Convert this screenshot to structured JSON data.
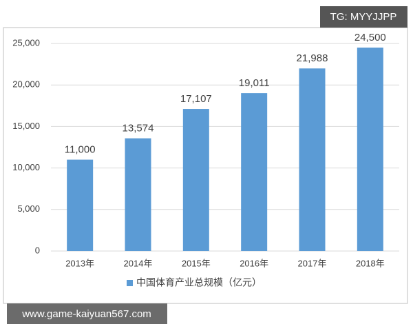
{
  "chart_data": {
    "type": "bar",
    "categories": [
      "2013年",
      "2014年",
      "2015年",
      "2016年",
      "2017年",
      "2018年"
    ],
    "series": [
      {
        "name": "中国体育产业总规模（亿元）",
        "color": "#5b9bd5",
        "values": [
          11000,
          13574,
          17107,
          19011,
          21988,
          24500
        ],
        "value_labels": [
          "11,000",
          "13,574",
          "17,107",
          "19,011",
          "21,988",
          "24,500"
        ]
      }
    ],
    "ylim": [
      0,
      25000
    ],
    "yticks": [
      0,
      {
        "value": 5000,
        "label": "5,000"
      },
      {
        "value": 10000,
        "label": "10,000"
      },
      {
        "value": 15000,
        "label": "15,000"
      },
      {
        "value": 20000,
        "label": "20,000"
      },
      {
        "value": 25000,
        "label": "25,000"
      }
    ],
    "grid": true,
    "legend": "bottom"
  },
  "watermarks": [
    "TG: MYYJJPP",
    "www.game-kaiyuan567.com"
  ]
}
